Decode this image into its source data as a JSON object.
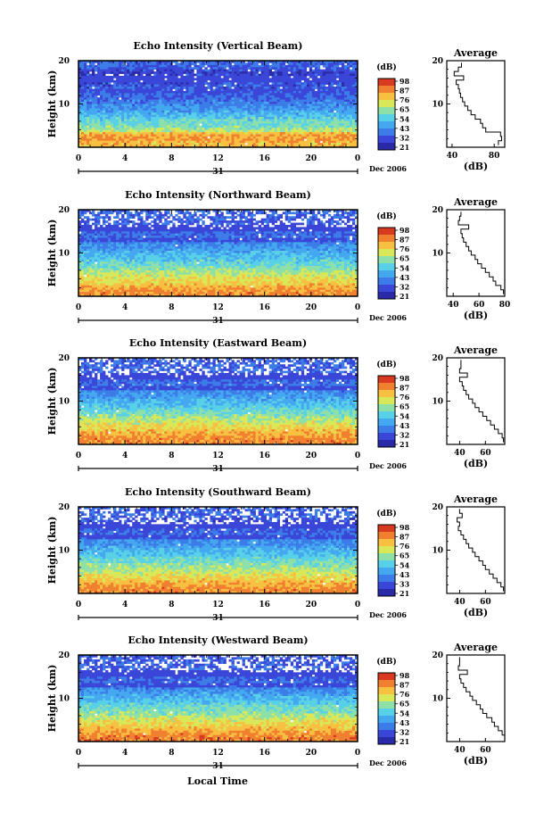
{
  "figure": {
    "ylabel": "Height (km)",
    "xlabel": "Local Time",
    "date_label": "Dec 2006",
    "day_label": "31",
    "colorbar_unit": "(dB)",
    "avg_title": "Average",
    "avg_xlabel": "(dB)"
  },
  "colors": {
    "colormap": [
      "#2a2aa8",
      "#3a46d8",
      "#3c7ce8",
      "#44a8f0",
      "#58d0e8",
      "#8ce0a8",
      "#d8e858",
      "#f8c040",
      "#f08030",
      "#d83a20"
    ]
  },
  "chart_data": [
    {
      "type": "heatmap",
      "title": "Echo Intensity (Vertical Beam)",
      "x_ticks": [
        "0",
        "4",
        "8",
        "12",
        "16",
        "20",
        "0"
      ],
      "xlim": [
        0,
        24
      ],
      "y_ticks": [
        "10",
        "20"
      ],
      "ylim": [
        0,
        20
      ],
      "colorbar_ticks": [
        "98",
        "87",
        "76",
        "65",
        "54",
        "43",
        "32",
        "21"
      ],
      "profile": {
        "heights": [
          1,
          2,
          3,
          4,
          5,
          6,
          7,
          8,
          9,
          10,
          11,
          12,
          13,
          14,
          15,
          16,
          17,
          18,
          19
        ],
        "values": [
          84,
          87,
          86,
          72,
          69,
          67,
          62,
          58,
          55,
          52,
          50,
          48,
          47,
          46,
          44,
          51,
          42,
          46,
          49
        ],
        "x_ticks": [
          "40",
          "80"
        ],
        "xlim": [
          35,
          90
        ]
      }
    },
    {
      "type": "heatmap",
      "title": "Echo Intensity (Northward Beam)",
      "x_ticks": [
        "0",
        "4",
        "8",
        "12",
        "16",
        "20",
        "0"
      ],
      "xlim": [
        0,
        24
      ],
      "y_ticks": [
        "10",
        "20"
      ],
      "ylim": [
        0,
        20
      ],
      "colorbar_ticks": [
        "98",
        "87",
        "76",
        "65",
        "54",
        "43",
        "32",
        "21"
      ],
      "profile": {
        "heights": [
          1,
          2,
          3,
          4,
          5,
          6,
          7,
          8,
          9,
          10,
          11,
          12,
          13,
          14,
          15,
          16,
          17,
          18,
          19
        ],
        "values": [
          79,
          77,
          73,
          71,
          68,
          65,
          62,
          59,
          57,
          54,
          52,
          50,
          48,
          47,
          46,
          52,
          44,
          45,
          46
        ],
        "x_ticks": [
          "40",
          "60",
          "80"
        ],
        "xlim": [
          35,
          80
        ]
      }
    },
    {
      "type": "heatmap",
      "title": "Echo Intensity (Eastward Beam)",
      "x_ticks": [
        "0",
        "4",
        "8",
        "12",
        "16",
        "20",
        "0"
      ],
      "xlim": [
        0,
        24
      ],
      "y_ticks": [
        "10",
        "20"
      ],
      "ylim": [
        0,
        20
      ],
      "colorbar_ticks": [
        "98",
        "87",
        "76",
        "65",
        "54",
        "43",
        "32",
        "21"
      ],
      "profile": {
        "heights": [
          1,
          2,
          3,
          4,
          5,
          6,
          7,
          8,
          9,
          10,
          11,
          12,
          13,
          14,
          15,
          16,
          17,
          18,
          19
        ],
        "values": [
          74,
          73,
          70,
          67,
          64,
          61,
          58,
          55,
          52,
          50,
          47,
          45,
          43,
          42,
          40,
          46,
          40,
          41,
          41
        ],
        "x_ticks": [
          "40",
          "60"
        ],
        "xlim": [
          30,
          75
        ]
      }
    },
    {
      "type": "heatmap",
      "title": "Echo Intensity (Southward Beam)",
      "x_ticks": [
        "0",
        "4",
        "8",
        "12",
        "16",
        "20",
        "0"
      ],
      "xlim": [
        0,
        24
      ],
      "y_ticks": [
        "10",
        "20"
      ],
      "ylim": [
        0,
        20
      ],
      "colorbar_ticks": [
        "98",
        "87",
        "76",
        "65",
        "54",
        "43",
        "33",
        "21"
      ],
      "profile": {
        "heights": [
          1,
          2,
          3,
          4,
          5,
          6,
          7,
          8,
          9,
          10,
          11,
          12,
          13,
          14,
          15,
          16,
          17,
          18,
          19
        ],
        "values": [
          74,
          72,
          69,
          66,
          63,
          60,
          58,
          55,
          52,
          50,
          47,
          45,
          43,
          41,
          39,
          40,
          38,
          42,
          40
        ],
        "x_ticks": [
          "40",
          "60"
        ],
        "xlim": [
          30,
          75
        ]
      }
    },
    {
      "type": "heatmap",
      "title": "Echo Intensity (Westward Beam)",
      "x_ticks": [
        "0",
        "4",
        "8",
        "12",
        "16",
        "20",
        "0"
      ],
      "xlim": [
        0,
        24
      ],
      "y_ticks": [
        "10",
        "20"
      ],
      "ylim": [
        0,
        20
      ],
      "colorbar_ticks": [
        "98",
        "87",
        "76",
        "65",
        "54",
        "43",
        "32",
        "21"
      ],
      "profile": {
        "heights": [
          1,
          2,
          3,
          4,
          5,
          6,
          7,
          8,
          9,
          10,
          11,
          12,
          13,
          14,
          15,
          16,
          17,
          18,
          19
        ],
        "values": [
          75,
          73,
          70,
          67,
          65,
          61,
          58,
          56,
          53,
          50,
          48,
          45,
          43,
          41,
          40,
          46,
          39,
          40,
          40
        ],
        "x_ticks": [
          "40",
          "60"
        ],
        "xlim": [
          30,
          75
        ]
      }
    }
  ]
}
